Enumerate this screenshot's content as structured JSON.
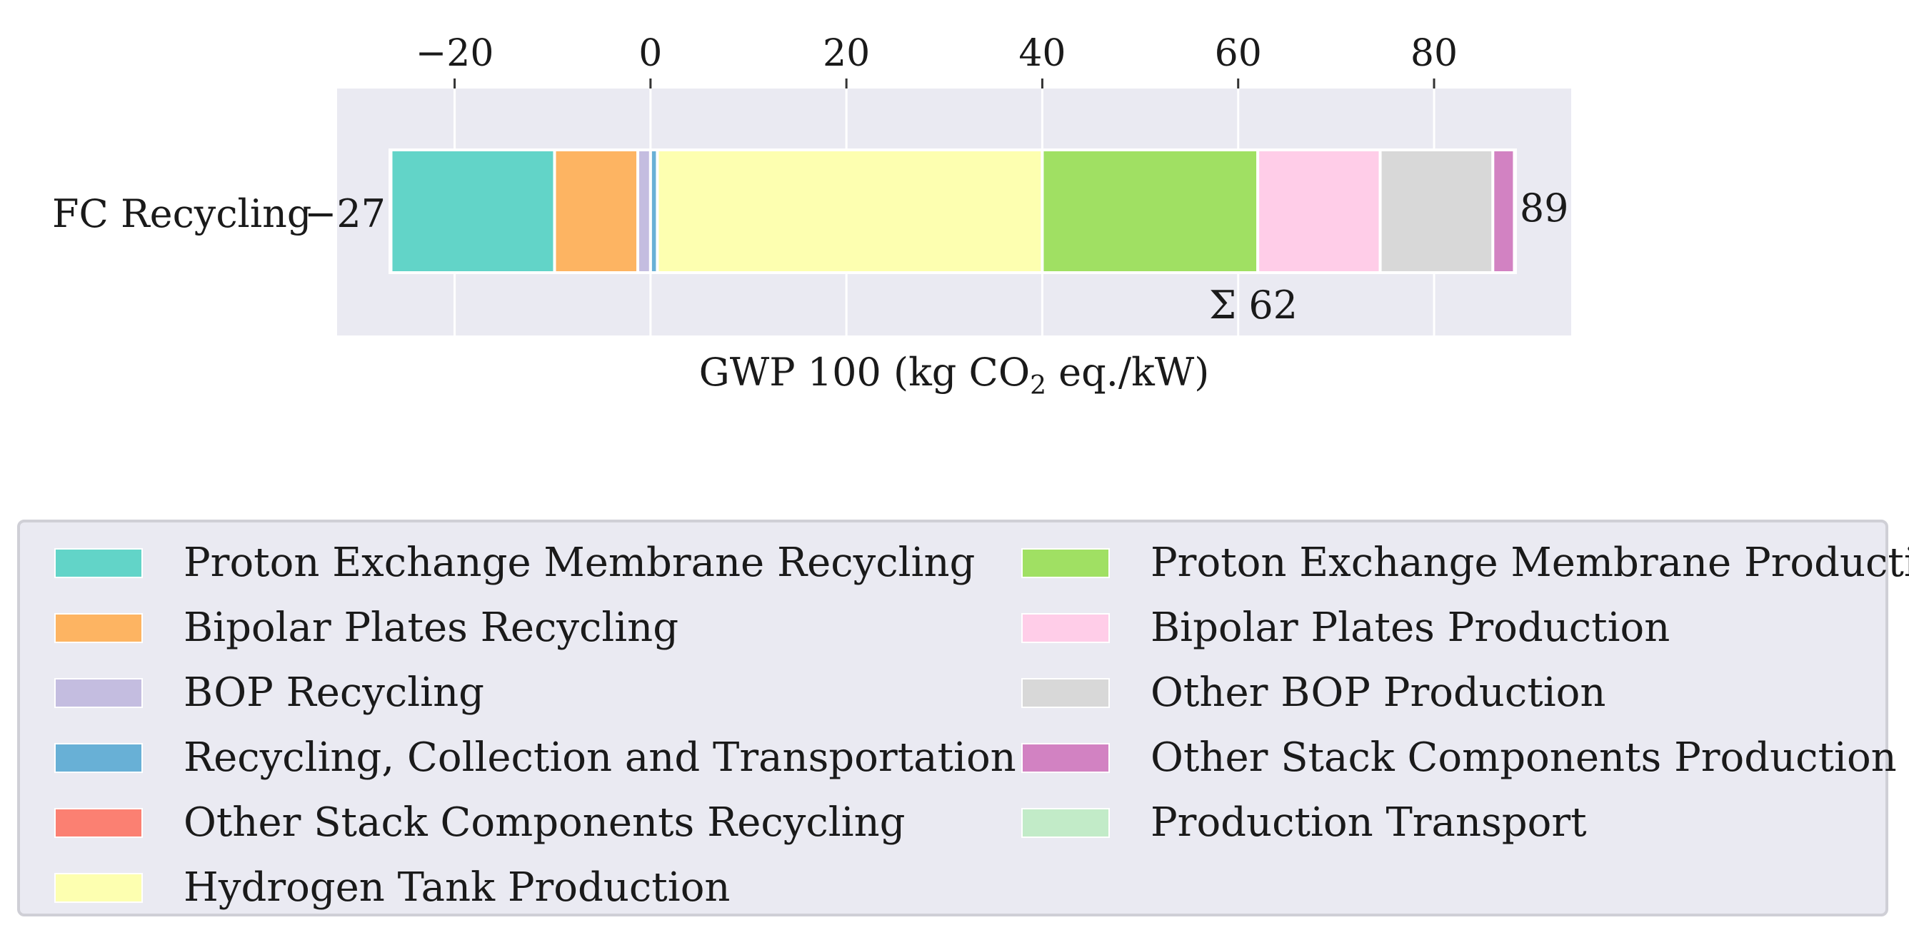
{
  "chart_data": {
    "type": "bar",
    "orientation": "horizontal",
    "stacked": true,
    "categories": [
      "FC Recycling"
    ],
    "xlabel": "GWP 100 (kg CO",
    "xlabel_subscript": "2",
    "xlabel_suffix": " eq./kW)",
    "xlim": [
      -32,
      94
    ],
    "xticks": [
      -20,
      0,
      20,
      40,
      60,
      80
    ],
    "xtick_labels": [
      "−20",
      "0",
      "20",
      "40",
      "60",
      "80"
    ],
    "grid": true,
    "xaxis_position": "top",
    "negative_total_label": "−27",
    "positive_total_label": "89",
    "net_label": "Σ 62",
    "series": [
      {
        "name": "BOP Recycling",
        "value": -1.3,
        "color": "#c4bde0"
      },
      {
        "name": "Bipolar Plates Recycling",
        "value": -8.5,
        "color": "#fdb462"
      },
      {
        "name": "Proton Exchange Membrane Recycling",
        "value": -16.7,
        "color": "#62d4c8"
      },
      {
        "name": "Other Stack Components Recycling",
        "value": -0.1,
        "color": "#fb8072"
      },
      {
        "name": "Recycling, Collection and Transportation",
        "value": 0.7,
        "color": "#68b0d6"
      },
      {
        "name": "Hydrogen Tank Production",
        "value": 39.3,
        "color": "#fdffb0"
      },
      {
        "name": "Proton Exchange Membrane Production",
        "value": 22.0,
        "color": "#a0e063"
      },
      {
        "name": "Bipolar Plates Production",
        "value": 12.5,
        "color": "#ffcde8"
      },
      {
        "name": "Other BOP Production",
        "value": 11.5,
        "color": "#d8d8d8"
      },
      {
        "name": "Other Stack Components Production",
        "value": 2.2,
        "color": "#d282c2"
      },
      {
        "name": "Production Transport",
        "value": 0.1,
        "color": "#c2ebc8"
      }
    ]
  },
  "legend": {
    "left": [
      {
        "label": "Proton Exchange Membrane Recycling",
        "color": "#62d4c8"
      },
      {
        "label": "Bipolar Plates Recycling",
        "color": "#fdb462"
      },
      {
        "label": "BOP Recycling",
        "color": "#c4bde0"
      },
      {
        "label": "Recycling, Collection and Transportation",
        "color": "#68b0d6"
      },
      {
        "label": "Other Stack Components Recycling",
        "color": "#fb8072"
      },
      {
        "label": "Hydrogen Tank Production",
        "color": "#fdffb0"
      }
    ],
    "right": [
      {
        "label": "Proton Exchange Membrane Production",
        "color": "#a0e063"
      },
      {
        "label": "Bipolar Plates Production",
        "color": "#ffcde8"
      },
      {
        "label": "Other BOP Production",
        "color": "#d8d8d8"
      },
      {
        "label": "Other Stack Components Production",
        "color": "#d282c2"
      },
      {
        "label": "Production Transport",
        "color": "#c2ebc8"
      }
    ]
  }
}
